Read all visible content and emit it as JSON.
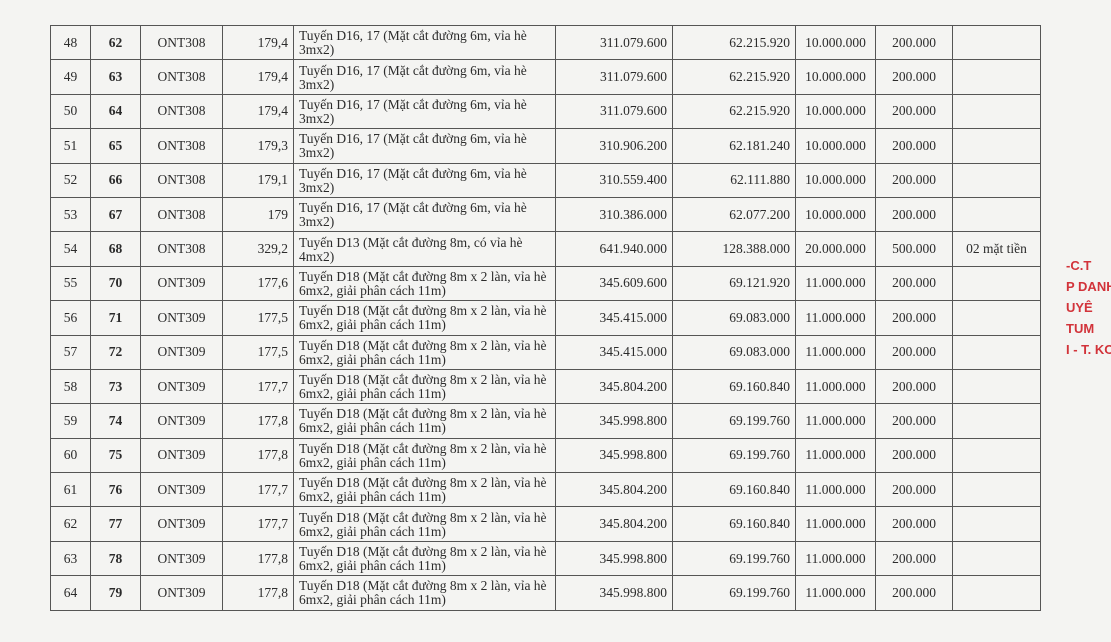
{
  "table": {
    "rows": [
      [
        "48",
        "62",
        "ONT308",
        "179,4",
        "Tuyến D16, 17 (Mặt cắt đường 6m, vỉa hè 3mx2)",
        "311.079.600",
        "62.215.920",
        "10.000.000",
        "200.000"
      ],
      [
        "49",
        "63",
        "ONT308",
        "179,4",
        "Tuyến D16, 17 (Mặt cắt đường 6m, vỉa hè 3mx2)",
        "311.079.600",
        "62.215.920",
        "10.000.000",
        "200.000"
      ],
      [
        "50",
        "64",
        "ONT308",
        "179,4",
        "Tuyến D16, 17 (Mặt cắt đường 6m, vỉa hè 3mx2)",
        "311.079.600",
        "62.215.920",
        "10.000.000",
        "200.000"
      ],
      [
        "51",
        "65",
        "ONT308",
        "179,3",
        "Tuyến D16, 17 (Mặt cắt đường 6m, vỉa hè 3mx2)",
        "310.906.200",
        "62.181.240",
        "10.000.000",
        "200.000"
      ],
      [
        "52",
        "66",
        "ONT308",
        "179,1",
        "Tuyến D16, 17 (Mặt cắt đường 6m, vỉa hè 3mx2)",
        "310.559.400",
        "62.111.880",
        "10.000.000",
        "200.000"
      ],
      [
        "53",
        "67",
        "ONT308",
        "179",
        "Tuyến D16, 17 (Mặt cắt đường 6m, vỉa hè 3mx2)",
        "310.386.000",
        "62.077.200",
        "10.000.000",
        "200.000"
      ],
      [
        "54",
        "68",
        "ONT308",
        "329,2",
        "Tuyến D13 (Mặt cắt đường 8m, có vỉa hè 4mx2)",
        "641.940.000",
        "128.388.000",
        "20.000.000",
        "500.000",
        "02 mặt tiền"
      ],
      [
        "55",
        "70",
        "ONT309",
        "177,6",
        "Tuyến D18 (Mặt cắt đường 8m x 2 làn, vỉa hè 6mx2, giải phân cách 11m)",
        "345.609.600",
        "69.121.920",
        "11.000.000",
        "200.000"
      ],
      [
        "56",
        "71",
        "ONT309",
        "177,5",
        "Tuyến D18 (Mặt cắt đường 8m x 2 làn, vỉa hè 6mx2, giải phân cách 11m)",
        "345.415.000",
        "69.083.000",
        "11.000.000",
        "200.000"
      ],
      [
        "57",
        "72",
        "ONT309",
        "177,5",
        "Tuyến D18 (Mặt cắt đường 8m x 2 làn, vỉa hè 6mx2, giải phân cách 11m)",
        "345.415.000",
        "69.083.000",
        "11.000.000",
        "200.000"
      ],
      [
        "58",
        "73",
        "ONT309",
        "177,7",
        "Tuyến D18 (Mặt cắt đường 8m x 2 làn, vỉa hè 6mx2, giải phân cách 11m)",
        "345.804.200",
        "69.160.840",
        "11.000.000",
        "200.000"
      ],
      [
        "59",
        "74",
        "ONT309",
        "177,8",
        "Tuyến D18 (Mặt cắt đường 8m x 2 làn, vỉa hè 6mx2, giải phân cách 11m)",
        "345.998.800",
        "69.199.760",
        "11.000.000",
        "200.000"
      ],
      [
        "60",
        "75",
        "ONT309",
        "177,8",
        "Tuyến D18 (Mặt cắt đường 8m x 2 làn, vỉa hè 6mx2, giải phân cách 11m)",
        "345.998.800",
        "69.199.760",
        "11.000.000",
        "200.000"
      ],
      [
        "61",
        "76",
        "ONT309",
        "177,7",
        "Tuyến D18 (Mặt cắt đường 8m x 2 làn, vỉa hè 6mx2, giải phân cách 11m)",
        "345.804.200",
        "69.160.840",
        "11.000.000",
        "200.000"
      ],
      [
        "62",
        "77",
        "ONT309",
        "177,7",
        "Tuyến D18 (Mặt cắt đường 8m x 2 làn, vỉa hè 6mx2, giải phân cách 11m)",
        "345.804.200",
        "69.160.840",
        "11.000.000",
        "200.000"
      ],
      [
        "63",
        "78",
        "ONT309",
        "177,8",
        "Tuyến D18 (Mặt cắt đường 8m x 2 làn, vỉa hè 6mx2, giải phân cách 11m)",
        "345.998.800",
        "69.199.760",
        "11.000.000",
        "200.000"
      ],
      [
        "64",
        "79",
        "ONT309",
        "177,8",
        "Tuyến D18 (Mặt cắt đường 8m x 2 làn, vỉa hè 6mx2, giải phân cách 11m)",
        "345.998.800",
        "69.199.760",
        "11.000.000",
        "200.000"
      ]
    ]
  },
  "stamp": {
    "lines": [
      "-C.T",
      "P DANH",
      "UYÊ",
      "TUM",
      "I - T. KO"
    ]
  }
}
